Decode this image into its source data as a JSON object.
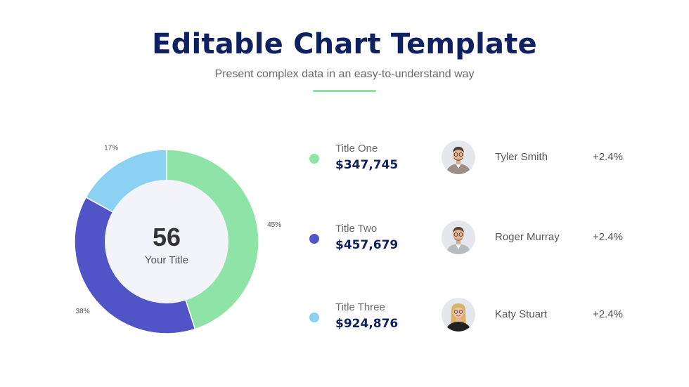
{
  "header": {
    "title": "Editable Chart Template",
    "subtitle": "Present complex data in an easy-to-understand way"
  },
  "center": {
    "value": "56",
    "label": "Your Title"
  },
  "chart_data": {
    "type": "pie",
    "donut": true,
    "title": "",
    "slices": [
      {
        "label": "45%",
        "value": 45,
        "color": "#8ee3a6"
      },
      {
        "label": "38%",
        "value": 38,
        "color": "#5054c6"
      },
      {
        "label": "17%",
        "value": 17,
        "color": "#8ad1f2"
      }
    ],
    "legend": [
      {
        "name": "Title One",
        "value": "$347,745",
        "color": "#8ee3a6"
      },
      {
        "name": "Title Two",
        "value": "$457,679",
        "color": "#5054c6"
      },
      {
        "name": "Title Three",
        "value": "$924,876",
        "color": "#8ad1f2"
      }
    ]
  },
  "people": [
    {
      "name": "Tyler Smith",
      "change": "+2.4%",
      "avatar": "man-avatar-icon"
    },
    {
      "name": "Roger Murray",
      "change": "+2.4%",
      "avatar": "man-avatar-icon"
    },
    {
      "name": "Katy Stuart",
      "change": "+2.4%",
      "avatar": "woman-avatar-icon"
    }
  ],
  "colors": {
    "title": "#0f2160",
    "accent_line": "#8fe0a6",
    "center_fill": "#f3f4f9"
  }
}
